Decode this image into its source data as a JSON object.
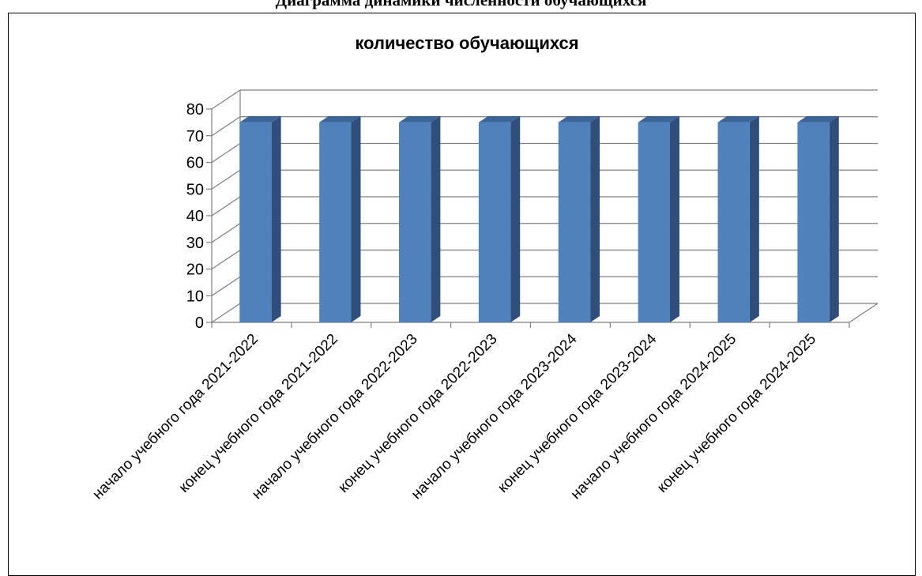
{
  "document": {
    "title": "Диаграмма динамики численности обучающихся"
  },
  "chart_data": {
    "type": "bar",
    "title": "количество обучающихся",
    "categories": [
      "начало учебного года 2021-2022",
      "конец учебного года 2021-2022",
      "начало учебного года 2022-2023",
      "конец учебного года 2022-2023",
      "начало учебного года 2023-2024",
      "конец учебного года 2023-2024",
      "начало учебного года 2024-2025",
      "конец учебного года 2024-2025"
    ],
    "values": [
      75,
      75,
      75,
      75,
      75,
      75,
      75,
      75
    ],
    "ylim": [
      0,
      80
    ],
    "yticks": [
      0,
      10,
      20,
      30,
      40,
      50,
      60,
      70,
      80
    ],
    "grid": true,
    "legend": "none",
    "colors": {
      "bar_front": "#4F81BD",
      "bar_side": "#2F4F7A",
      "bar_top": "#3C6496",
      "grid": "#7F7F7F"
    }
  }
}
